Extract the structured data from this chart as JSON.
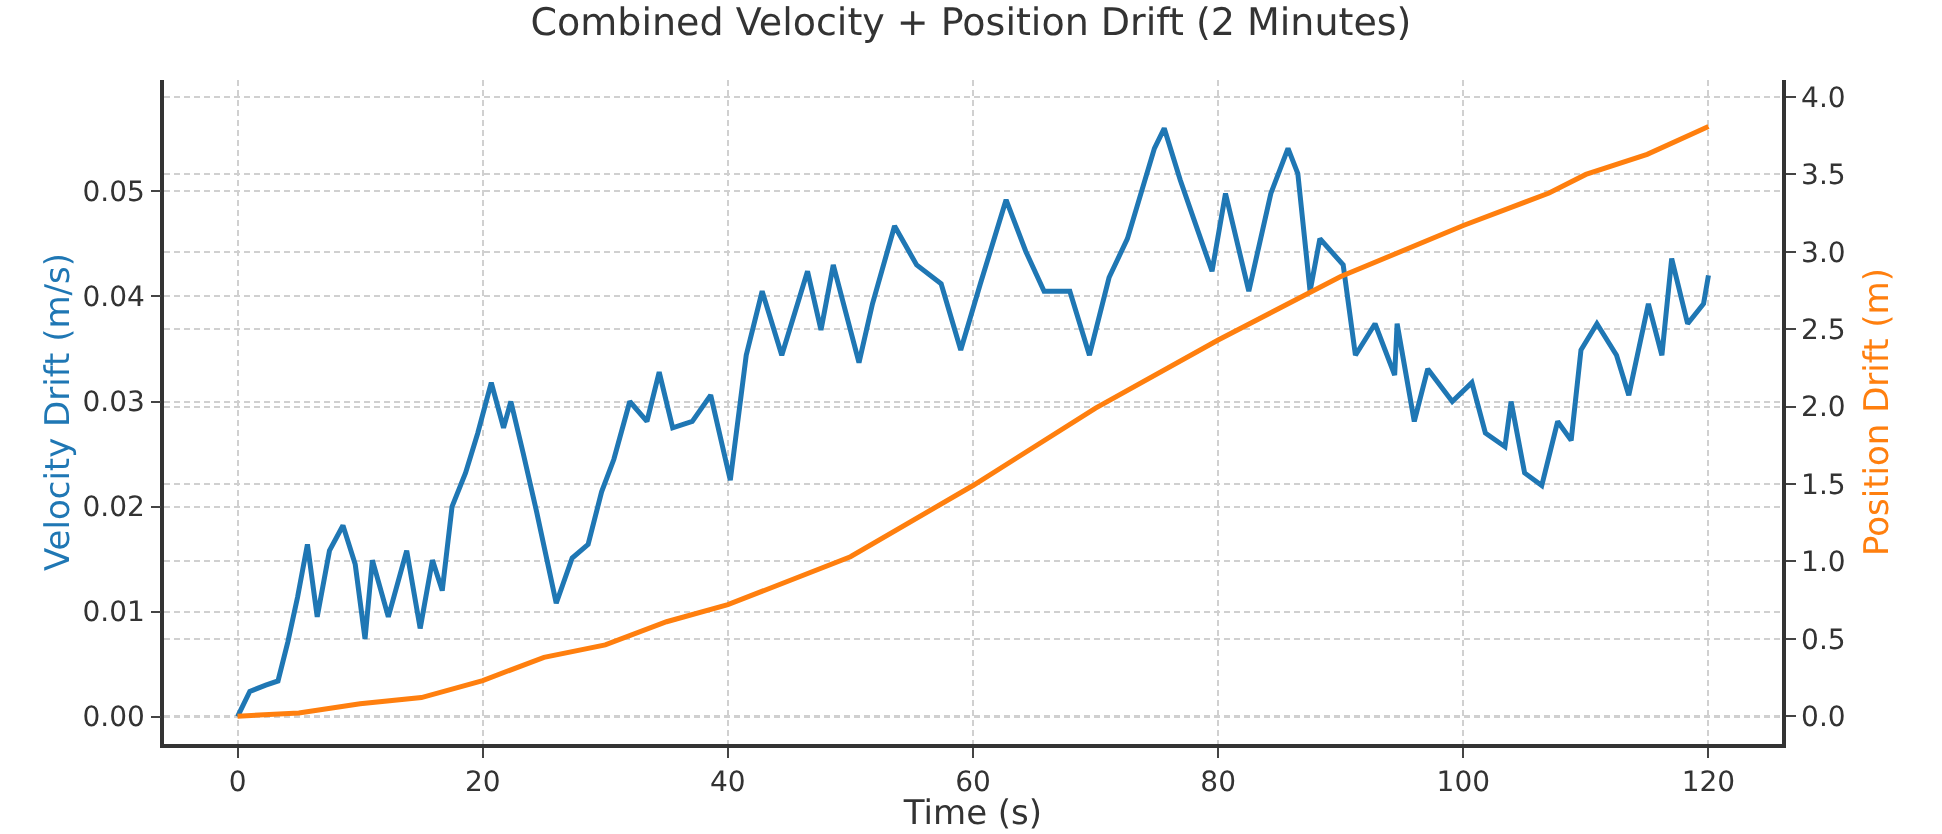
{
  "chart_data": {
    "type": "line",
    "title": "Combined Velocity + Position Drift (2 Minutes)",
    "xlabel": "Time (s)",
    "ylabel": "Velocity Drift (m/s)",
    "y2label": "Position Drift (m)",
    "xlim": [
      -6,
      126
    ],
    "xticks": [
      0,
      20,
      40,
      60,
      80,
      100,
      120
    ],
    "ylim": [
      -0.0026,
      0.0606
    ],
    "yticks": [
      {
        "value": 0,
        "label": "0.00"
      },
      {
        "value": 0.01,
        "label": "0.01"
      },
      {
        "value": 0.02,
        "label": "0.02"
      },
      {
        "value": 0.03,
        "label": "0.03"
      },
      {
        "value": 0.04,
        "label": "0.04"
      },
      {
        "value": 0.05,
        "label": "0.05"
      }
    ],
    "y2lim": [
      -0.18,
      4.11
    ],
    "y2ticks": [
      {
        "value": 0,
        "label": "0.0"
      },
      {
        "value": 0.5,
        "label": "0.5"
      },
      {
        "value": 1,
        "label": "1.0"
      },
      {
        "value": 1.5,
        "label": "1.5"
      },
      {
        "value": 2,
        "label": "2.0"
      },
      {
        "value": 2.5,
        "label": "2.5"
      },
      {
        "value": 3,
        "label": "3.0"
      },
      {
        "value": 3.5,
        "label": "3.5"
      },
      {
        "value": 4,
        "label": "4.0"
      }
    ],
    "grid": true,
    "series": [
      {
        "color": "#1f77b4",
        "x": [
          0,
          1,
          2.3,
          3.3,
          4.1,
          4.9,
          5.7,
          6.5,
          7.5,
          8.6,
          9.6,
          10.4,
          11,
          12.3,
          13.8,
          14.9,
          15.9,
          16.7,
          17.5,
          18.6,
          19.6,
          20.7,
          21.7,
          22.3,
          23.3,
          24.4,
          26,
          27.3,
          28.6,
          29.7,
          30.7,
          32,
          33.4,
          34.4,
          35.5,
          37.1,
          38.6,
          40.2,
          41.5,
          42.8,
          44.4,
          46.5,
          47.6,
          48.6,
          50.7,
          51.8,
          53.6,
          55.4,
          57.4,
          59,
          60.6,
          62.7,
          64.3,
          65.8,
          67.9,
          69.5,
          71.1,
          72.6,
          74.8,
          75.6,
          76.9,
          78,
          79.5,
          80.6,
          82.5,
          84.3,
          85.7,
          86.5,
          87.5,
          88.3,
          90.2,
          91.2,
          92.8,
          94.4,
          94.6,
          96,
          97.1,
          99.1,
          100.7,
          101.8,
          103.4,
          103.9,
          105,
          106.4,
          107.7,
          108.8,
          109.6,
          110.9,
          112.5,
          113.5,
          115.1,
          116.2,
          117,
          118.3,
          119.6,
          120
        ],
        "values": [
          0,
          0.0024,
          0.003,
          0.0034,
          0.0071,
          0.0114,
          0.0164,
          0.0095,
          0.0158,
          0.0182,
          0.0145,
          0.0074,
          0.0149,
          0.0095,
          0.0158,
          0.0084,
          0.0149,
          0.012,
          0.02,
          0.0232,
          0.027,
          0.0318,
          0.0275,
          0.03,
          0.0251,
          0.0195,
          0.0108,
          0.0151,
          0.0164,
          0.0214,
          0.0245,
          0.03,
          0.0281,
          0.0328,
          0.0275,
          0.0281,
          0.0306,
          0.0225,
          0.0344,
          0.0405,
          0.0344,
          0.0424,
          0.0368,
          0.043,
          0.0337,
          0.0393,
          0.0467,
          0.043,
          0.0412,
          0.0349,
          0.0412,
          0.0492,
          0.0443,
          0.0405,
          0.0405,
          0.0344,
          0.0418,
          0.0455,
          0.0541,
          0.056,
          0.0511,
          0.0474,
          0.0424,
          0.0498,
          0.0405,
          0.0498,
          0.0541,
          0.0517,
          0.0405,
          0.0455,
          0.043,
          0.0344,
          0.0374,
          0.0325,
          0.0374,
          0.0281,
          0.0331,
          0.03,
          0.0318,
          0.027,
          0.0257,
          0.03,
          0.0232,
          0.022,
          0.0281,
          0.0263,
          0.0349,
          0.0374,
          0.0344,
          0.0306,
          0.0393,
          0.0344,
          0.0436,
          0.0374,
          0.0393,
          0.042
        ]
      },
      {
        "color": "#ff7f0e",
        "axis": "y2",
        "x": [
          0,
          5,
          10,
          15,
          20,
          25,
          30,
          35,
          40,
          50,
          60,
          70,
          80,
          90,
          100,
          107,
          110,
          115,
          120
        ],
        "values": [
          0,
          0.02,
          0.08,
          0.12,
          0.23,
          0.38,
          0.46,
          0.61,
          0.72,
          1.03,
          1.49,
          1.99,
          2.43,
          2.84,
          3.17,
          3.38,
          3.5,
          3.63,
          3.81
        ]
      }
    ]
  }
}
